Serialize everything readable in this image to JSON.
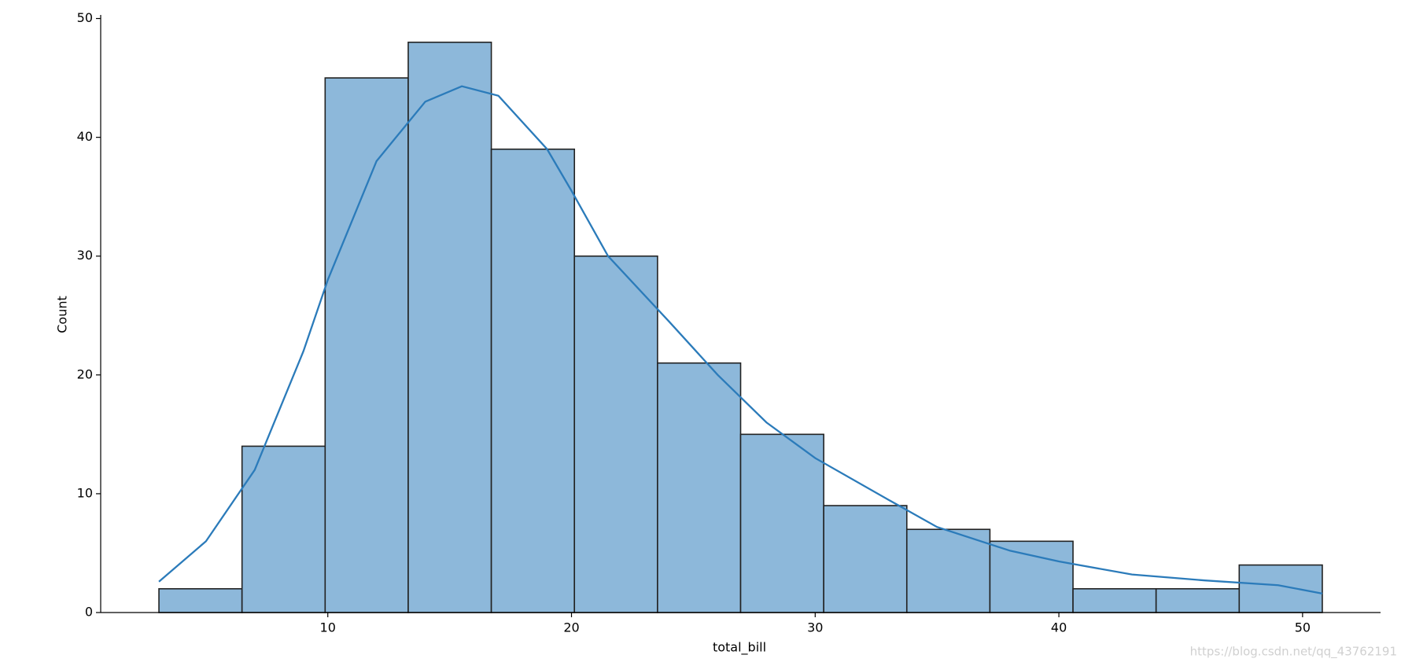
{
  "chart_data": {
    "type": "histogram",
    "xlabel": "total_bill",
    "ylabel": "Count",
    "bins": [
      3.07,
      6.48,
      9.89,
      13.3,
      16.71,
      20.12,
      23.53,
      26.94,
      30.35,
      33.76,
      37.17,
      40.58,
      43.99,
      47.4,
      50.81
    ],
    "values": [
      2,
      14,
      45,
      48,
      39,
      30,
      21,
      15,
      9,
      7,
      6,
      2,
      2,
      4
    ],
    "color": "#8db8da",
    "edgecolor": "#222222",
    "kde": {
      "color": "#2b7bba",
      "x": [
        3.07,
        5,
        7,
        9,
        10,
        12,
        14,
        15.5,
        17,
        19,
        20,
        21.5,
        24,
        26,
        28,
        30,
        33,
        35,
        38,
        40,
        43,
        46,
        49,
        50.81
      ],
      "values": [
        2.6,
        6,
        12,
        22,
        28,
        38,
        43,
        44.3,
        43.5,
        39,
        35.5,
        30,
        24.5,
        20,
        16,
        13,
        9.5,
        7.2,
        5.2,
        4.3,
        3.2,
        2.7,
        2.3,
        1.6
      ]
    },
    "xlim": [
      0.68,
      53.2
    ],
    "ylim": [
      0,
      50.3
    ],
    "xticks": [
      10,
      20,
      30,
      40,
      50
    ],
    "yticks": [
      0,
      10,
      20,
      30,
      40,
      50
    ],
    "watermark": "https://blog.csdn.net/qq_43762191"
  }
}
